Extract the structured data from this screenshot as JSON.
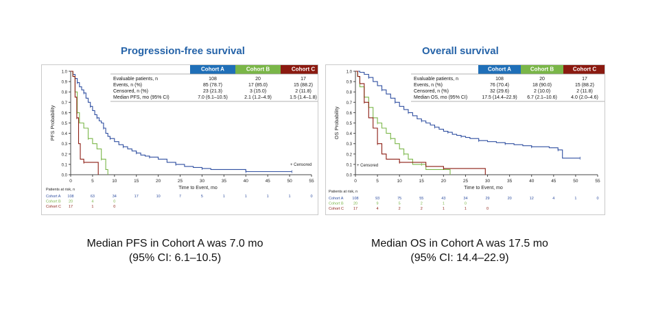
{
  "colors": {
    "cohort_a": "#2e4ea0",
    "cohort_b": "#7ab648",
    "cohort_c": "#8b1a10",
    "title": "#2563a8",
    "hdr_a": "#1f6fb8",
    "hdr_b": "#7ab648",
    "hdr_c": "#8b1a10"
  },
  "chart_data": [
    {
      "type": "line",
      "subtype": "kaplan-meier",
      "title": "Progression-free survival",
      "xlabel": "Time to Event, mo",
      "ylabel": "PFS Probability",
      "xlim": [
        0,
        55
      ],
      "ylim": [
        0,
        1
      ],
      "x_ticks": [
        "0",
        "5",
        "10",
        "15",
        "20",
        "25",
        "30",
        "35",
        "40",
        "45",
        "50",
        "55"
      ],
      "y_ticks": [
        "0.0",
        "0.1",
        "0.2",
        "0.3",
        "0.4",
        "0.5",
        "0.6",
        "0.7",
        "0.8",
        "0.9",
        "1.0"
      ],
      "censored_label": "+ Censored",
      "table": {
        "headers": [
          "Cohort A",
          "Cohort B",
          "Cohort C"
        ],
        "rows": [
          {
            "label": "Evaluable patients, n",
            "values": [
              "108",
              "20",
              "17"
            ]
          },
          {
            "label": "Events, n (%)",
            "values": [
              "85 (78.7)",
              "17 (85.0)",
              "15 (88.2)"
            ]
          },
          {
            "label": "Censored, n (%)",
            "values": [
              "23 (21.3)",
              "3 (15.0)",
              "2 (11.8)"
            ]
          },
          {
            "label": "Median PFS, mo (95% CI)",
            "values": [
              "7.0 (6.1–10.5)",
              "2.1 (1.2–4.9)",
              "1.5 (1.4–1.8)"
            ]
          }
        ]
      },
      "risk_table": {
        "title": "Patients at risk, n",
        "rows": [
          {
            "label": "Cohort A",
            "values": [
              "108",
              "63",
              "34",
              "17",
              "10",
              "7",
              "5",
              "1",
              "1",
              "1",
              "1",
              "0"
            ]
          },
          {
            "label": "Cohort B",
            "values": [
              "20",
              "4",
              "0"
            ]
          },
          {
            "label": "Cohort C",
            "values": [
              "17",
              "1",
              "0"
            ]
          }
        ]
      },
      "series": [
        {
          "name": "Cohort A",
          "points": [
            [
              0,
              1.0
            ],
            [
              0.5,
              0.97
            ],
            [
              1.0,
              0.93
            ],
            [
              1.5,
              0.89
            ],
            [
              2,
              0.85
            ],
            [
              2.5,
              0.82
            ],
            [
              3,
              0.79
            ],
            [
              3.5,
              0.74
            ],
            [
              4,
              0.7
            ],
            [
              4.5,
              0.66
            ],
            [
              5,
              0.62
            ],
            [
              5.5,
              0.58
            ],
            [
              6,
              0.55
            ],
            [
              6.5,
              0.52
            ],
            [
              7,
              0.5
            ],
            [
              7.5,
              0.45
            ],
            [
              8,
              0.4
            ],
            [
              8.5,
              0.37
            ],
            [
              9,
              0.35
            ],
            [
              10,
              0.32
            ],
            [
              11,
              0.29
            ],
            [
              12,
              0.27
            ],
            [
              13,
              0.25
            ],
            [
              14,
              0.23
            ],
            [
              15,
              0.21
            ],
            [
              16,
              0.19
            ],
            [
              17,
              0.18
            ],
            [
              18,
              0.17
            ],
            [
              20,
              0.15
            ],
            [
              22,
              0.12
            ],
            [
              24,
              0.1
            ],
            [
              26,
              0.08
            ],
            [
              28,
              0.07
            ],
            [
              30,
              0.06
            ],
            [
              32,
              0.05
            ],
            [
              35,
              0.05
            ],
            [
              40,
              0.03
            ],
            [
              45,
              0.03
            ],
            [
              50,
              0.03
            ],
            [
              50.5,
              0.03
            ]
          ]
        },
        {
          "name": "Cohort B",
          "points": [
            [
              0,
              1.0
            ],
            [
              0.5,
              0.95
            ],
            [
              1.0,
              0.8
            ],
            [
              1.5,
              0.6
            ],
            [
              2,
              0.5
            ],
            [
              3,
              0.45
            ],
            [
              4,
              0.35
            ],
            [
              5,
              0.3
            ],
            [
              6,
              0.25
            ],
            [
              7,
              0.15
            ],
            [
              8,
              0.05
            ],
            [
              8.5,
              0.0
            ]
          ]
        },
        {
          "name": "Cohort C",
          "points": [
            [
              0,
              1.0
            ],
            [
              0.5,
              0.95
            ],
            [
              1.0,
              0.75
            ],
            [
              1.4,
              0.55
            ],
            [
              1.8,
              0.3
            ],
            [
              2.2,
              0.15
            ],
            [
              3,
              0.12
            ],
            [
              5,
              0.12
            ],
            [
              6,
              0.12
            ],
            [
              6.3,
              0.0
            ]
          ]
        }
      ]
    },
    {
      "type": "line",
      "subtype": "kaplan-meier",
      "title": "Overall survival",
      "xlabel": "Time to Event, mo",
      "ylabel": "OS Probability",
      "xlim": [
        0,
        55
      ],
      "ylim": [
        0,
        1
      ],
      "x_ticks": [
        "0",
        "5",
        "10",
        "15",
        "20",
        "25",
        "30",
        "35",
        "40",
        "45",
        "50",
        "55"
      ],
      "y_ticks": [
        "0.0",
        "0.1",
        "0.2",
        "0.3",
        "0.4",
        "0.5",
        "0.6",
        "0.7",
        "0.8",
        "0.9",
        "1.0"
      ],
      "censored_label": "+ Censored",
      "table": {
        "headers": [
          "Cohort A",
          "Cohort B",
          "Cohort C"
        ],
        "rows": [
          {
            "label": "Evaluable patients, n",
            "values": [
              "108",
              "20",
              "17"
            ]
          },
          {
            "label": "Events, n (%)",
            "values": [
              "76 (70.4)",
              "18 (90.0)",
              "15 (88.2)"
            ]
          },
          {
            "label": "Censored, n (%)",
            "values": [
              "32 (29.6)",
              "2 (10.0)",
              "2 (11.8)"
            ]
          },
          {
            "label": "Median OS, mo (95% CI)",
            "values": [
              "17.5 (14.4–22.9)",
              "6.7 (2.1–10.6)",
              "4.0 (2.0–4.6)"
            ]
          }
        ]
      },
      "risk_table": {
        "title": "Patients at risk, n",
        "rows": [
          {
            "label": "Cohort A",
            "values": [
              "108",
              "93",
              "75",
              "55",
              "43",
              "34",
              "29",
              "20",
              "12",
              "4",
              "1",
              "0"
            ]
          },
          {
            "label": "Cohort B",
            "values": [
              "20",
              "9",
              "5",
              "2",
              "1",
              "0"
            ]
          },
          {
            "label": "Cohort C",
            "values": [
              "17",
              "4",
              "2",
              "2",
              "1",
              "1",
              "0"
            ]
          }
        ]
      },
      "series": [
        {
          "name": "Cohort A",
          "points": [
            [
              0,
              1.0
            ],
            [
              1,
              0.99
            ],
            [
              2,
              0.97
            ],
            [
              3,
              0.94
            ],
            [
              4,
              0.9
            ],
            [
              5,
              0.86
            ],
            [
              6,
              0.82
            ],
            [
              7,
              0.78
            ],
            [
              8,
              0.74
            ],
            [
              9,
              0.7
            ],
            [
              10,
              0.66
            ],
            [
              11,
              0.63
            ],
            [
              12,
              0.6
            ],
            [
              13,
              0.57
            ],
            [
              14,
              0.54
            ],
            [
              15,
              0.52
            ],
            [
              16,
              0.5
            ],
            [
              17,
              0.48
            ],
            [
              18,
              0.46
            ],
            [
              19,
              0.44
            ],
            [
              20,
              0.42
            ],
            [
              21,
              0.41
            ],
            [
              22,
              0.39
            ],
            [
              23,
              0.38
            ],
            [
              24,
              0.37
            ],
            [
              25,
              0.36
            ],
            [
              26,
              0.35
            ],
            [
              28,
              0.33
            ],
            [
              30,
              0.32
            ],
            [
              32,
              0.31
            ],
            [
              34,
              0.3
            ],
            [
              36,
              0.29
            ],
            [
              38,
              0.28
            ],
            [
              40,
              0.27
            ],
            [
              42,
              0.27
            ],
            [
              44,
              0.26
            ],
            [
              46,
              0.24
            ],
            [
              47,
              0.16
            ],
            [
              49,
              0.16
            ],
            [
              51,
              0.16
            ]
          ]
        },
        {
          "name": "Cohort B",
          "points": [
            [
              0,
              1.0
            ],
            [
              0.5,
              0.95
            ],
            [
              1,
              0.85
            ],
            [
              2,
              0.75
            ],
            [
              3,
              0.65
            ],
            [
              4,
              0.55
            ],
            [
              5,
              0.5
            ],
            [
              6,
              0.45
            ],
            [
              7,
              0.4
            ],
            [
              8,
              0.35
            ],
            [
              9,
              0.3
            ],
            [
              10,
              0.25
            ],
            [
              11,
              0.2
            ],
            [
              12,
              0.15
            ],
            [
              13,
              0.1
            ],
            [
              15,
              0.1
            ],
            [
              16,
              0.05
            ],
            [
              20,
              0.05
            ],
            [
              21.5,
              0.0
            ]
          ]
        },
        {
          "name": "Cohort C",
          "points": [
            [
              0,
              1.0
            ],
            [
              0.5,
              0.95
            ],
            [
              1,
              0.88
            ],
            [
              2,
              0.7
            ],
            [
              3,
              0.55
            ],
            [
              4,
              0.45
            ],
            [
              5,
              0.3
            ],
            [
              6,
              0.2
            ],
            [
              7,
              0.15
            ],
            [
              10,
              0.12
            ],
            [
              15,
              0.12
            ],
            [
              16,
              0.08
            ],
            [
              20,
              0.06
            ],
            [
              24,
              0.06
            ],
            [
              29,
              0.06
            ],
            [
              29.5,
              0.0
            ]
          ]
        }
      ]
    }
  ],
  "captions": {
    "pfs_line1": "Median PFS in Cohort A was 7.0 mo",
    "pfs_line2": "(95% CI: 6.1–10.5)",
    "os_line1": "Median OS in Cohort A was 17.5 mo",
    "os_line2": "(95% CI: 14.4–22.9)"
  }
}
